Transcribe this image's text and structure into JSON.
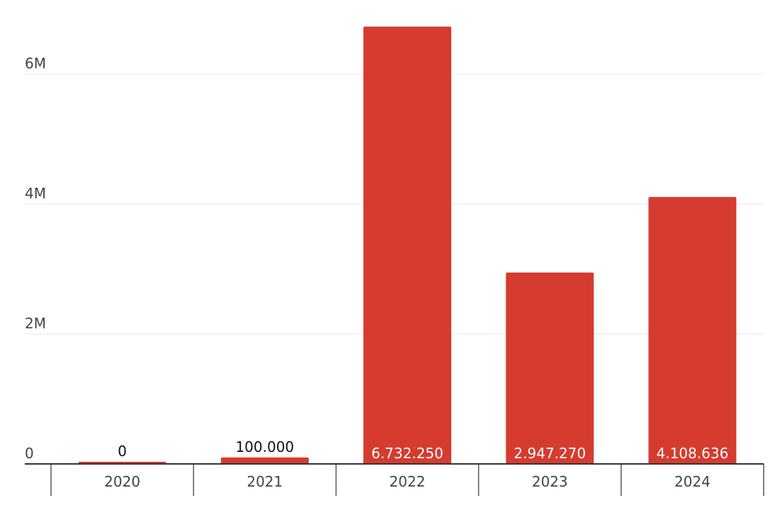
{
  "chart_data": {
    "type": "bar",
    "categories": [
      "2020",
      "2021",
      "2022",
      "2023",
      "2024"
    ],
    "values": [
      0,
      100000,
      6732250,
      2947270,
      4108636
    ],
    "value_labels": [
      "0",
      "100.000",
      "6.732.250",
      "2.947.270",
      "4.108.636"
    ],
    "color": "#d63b2f",
    "ylim": [
      0,
      7000000
    ],
    "yticks": [
      0,
      {
        "value": 2000000,
        "label": "2M"
      },
      {
        "value": 4000000,
        "label": "4M"
      },
      {
        "value": 6000000,
        "label": "6M"
      }
    ],
    "grid": true
  }
}
